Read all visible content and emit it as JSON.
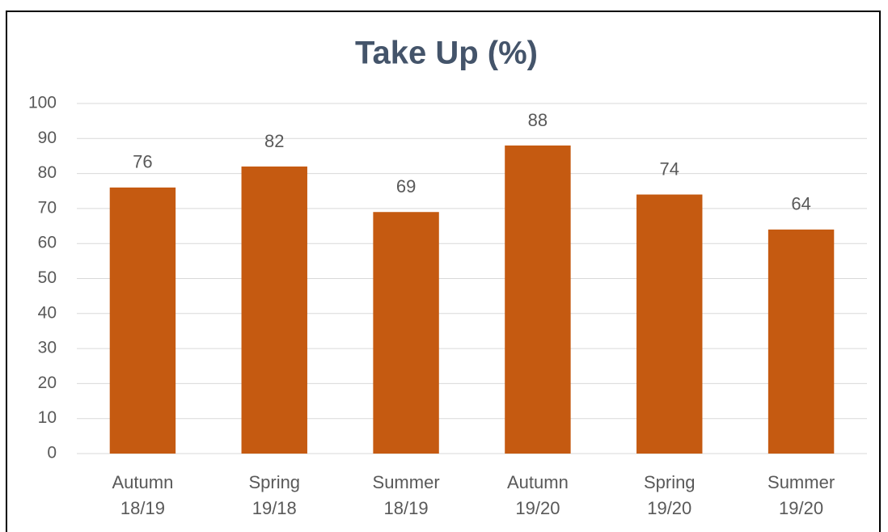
{
  "chart_data": {
    "type": "bar",
    "title": "Take Up (%)",
    "categories": [
      "Autumn\n18/19",
      "Spring\n19/18",
      "Summer\n18/19",
      "Autumn\n19/20",
      "Spring\n19/20",
      "Summer\n19/20"
    ],
    "values": [
      76,
      82,
      69,
      88,
      74,
      64
    ],
    "color": "#c55a11",
    "ylim": [
      0,
      100
    ],
    "yticks": [
      0,
      10,
      20,
      30,
      40,
      50,
      60,
      70,
      80,
      90,
      100
    ],
    "grid": true,
    "data_labels": true
  }
}
